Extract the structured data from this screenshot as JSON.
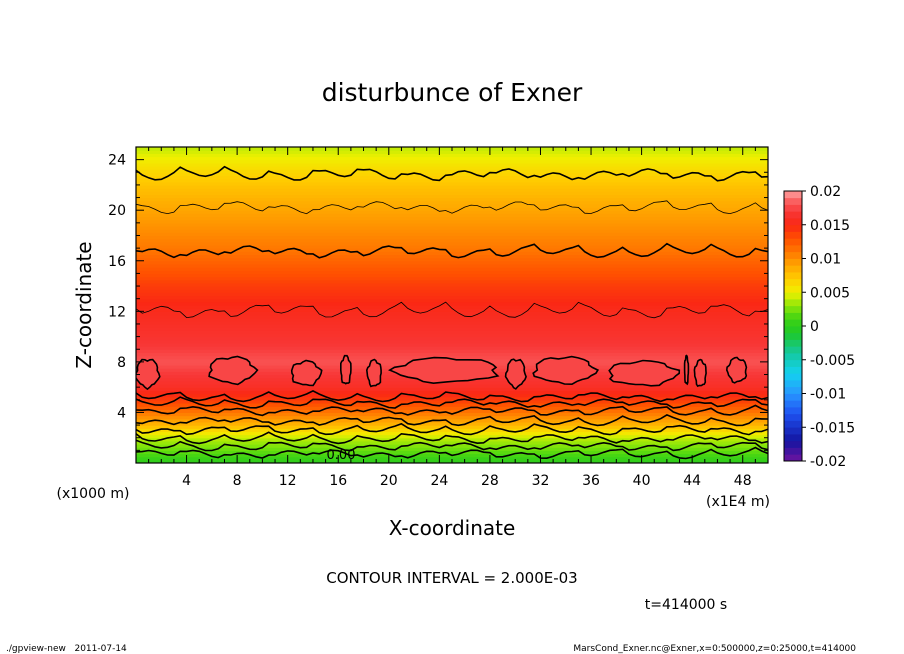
{
  "chart_data": {
    "type": "heatmap",
    "title": "disturbunce of Exner",
    "xlabel": "X-coordinate",
    "ylabel": "Z-coordinate",
    "x_unit_label": "(x1E4 m)",
    "y_unit_label": "(x1000 m)",
    "xlim": [
      0,
      50
    ],
    "ylim": [
      0,
      25
    ],
    "x_ticks": [
      4,
      8,
      12,
      16,
      20,
      24,
      28,
      32,
      36,
      40,
      44,
      48
    ],
    "y_ticks": [
      4,
      8,
      12,
      16,
      20,
      24
    ],
    "colorbar": {
      "range": [
        -0.02,
        0.02
      ],
      "tick_labels": [
        "0.02",
        "0.015",
        "0.01",
        "0.005",
        "0",
        "-0.005",
        "-0.01",
        "-0.015",
        "-0.02"
      ],
      "tick_values": [
        0.02,
        0.015,
        0.01,
        0.005,
        0,
        -0.005,
        -0.01,
        -0.015,
        -0.02
      ]
    },
    "contour_label": "0.00",
    "contour_interval_text": "CONTOUR INTERVAL = 2.000E-03",
    "time_text": "t=414000 s",
    "vertical_profile": {
      "z": [
        0,
        1,
        2,
        3,
        4,
        5,
        6,
        8,
        10,
        12,
        14,
        16,
        17,
        20,
        22,
        23,
        25
      ],
      "value": [
        0.0,
        0.002,
        0.004,
        0.008,
        0.011,
        0.014,
        0.016,
        0.018,
        0.0165,
        0.0155,
        0.014,
        0.012,
        0.011,
        0.009,
        0.0075,
        0.0065,
        0.004
      ]
    }
  },
  "footer": {
    "left": "./gpview-new   2011-07-14",
    "right": "MarsCond_Exner.nc@Exner,x=0:500000,z=0:25000,t=414000"
  }
}
